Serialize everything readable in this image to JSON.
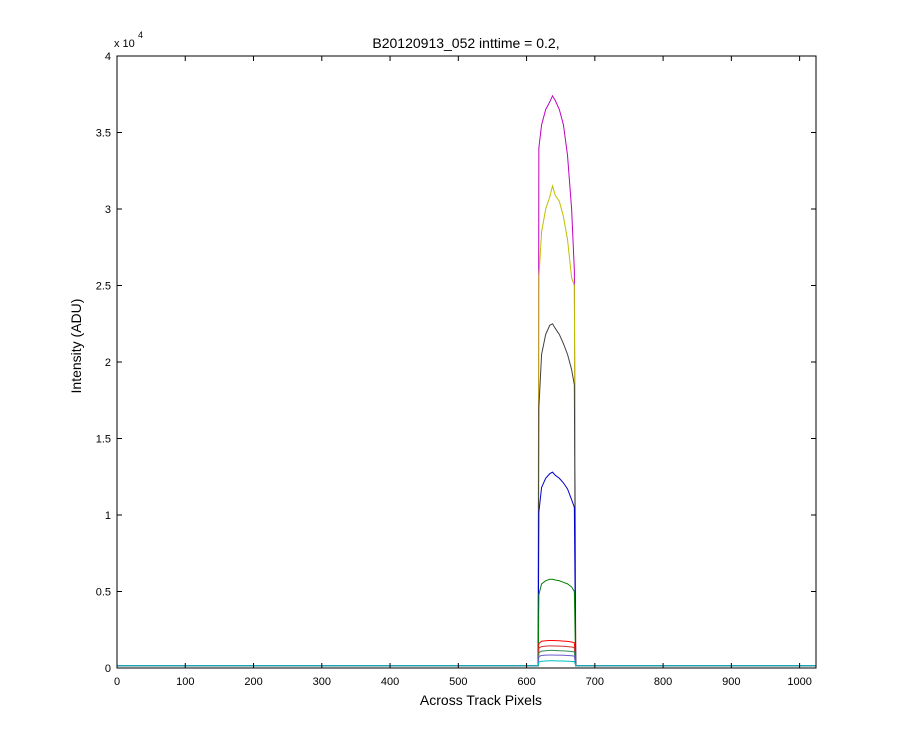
{
  "chart_data": {
    "type": "line",
    "title": "B20120913_052 inttime = 0.2,",
    "xlabel": "Across Track Pixels",
    "ylabel": "Intensity (ADU)",
    "xlim": [
      0,
      1024
    ],
    "ylim": [
      0,
      40000
    ],
    "xticks": [
      0,
      100,
      200,
      300,
      400,
      500,
      600,
      700,
      800,
      900,
      1000
    ],
    "yticks": [
      0,
      5000,
      10000,
      15000,
      20000,
      25000,
      30000,
      35000,
      40000
    ],
    "ytick_labels": [
      "0",
      "0.5",
      "1",
      "1.5",
      "2",
      "2.5",
      "3",
      "3.5",
      "4"
    ],
    "y_multiplier_base": "x 10",
    "y_multiplier_exp": "4",
    "grid": false,
    "legend": "none",
    "background_level": 150,
    "plateau_x": [
      618,
      671
    ],
    "series": [
      {
        "color": "#bf00bf",
        "x": [
          618,
          622,
          628,
          634,
          638,
          642,
          648,
          654,
          660,
          666,
          670
        ],
        "values": [
          34000,
          35500,
          36500,
          37000,
          37400,
          37100,
          36500,
          35500,
          33500,
          30000,
          26000
        ]
      },
      {
        "color": "#bfbf00",
        "x": [
          618,
          622,
          628,
          634,
          638,
          642,
          648,
          654,
          660,
          666,
          670
        ],
        "values": [
          25500,
          28500,
          30000,
          30800,
          31500,
          30900,
          30500,
          29500,
          28000,
          25500,
          25000
        ]
      },
      {
        "color": "#404040",
        "x": [
          618,
          622,
          628,
          634,
          638,
          642,
          648,
          654,
          660,
          666,
          670
        ],
        "values": [
          17000,
          20500,
          21800,
          22400,
          22500,
          22200,
          21800,
          21200,
          20500,
          19500,
          18500
        ]
      },
      {
        "color": "#0000cc",
        "x": [
          618,
          622,
          628,
          634,
          638,
          642,
          648,
          654,
          660,
          666,
          670
        ],
        "values": [
          10200,
          11800,
          12400,
          12700,
          12800,
          12600,
          12400,
          12100,
          11700,
          11000,
          10500
        ]
      },
      {
        "color": "#008000",
        "x": [
          618,
          622,
          628,
          634,
          638,
          642,
          648,
          654,
          660,
          666,
          670
        ],
        "values": [
          4800,
          5500,
          5700,
          5800,
          5800,
          5750,
          5700,
          5600,
          5500,
          5300,
          5000
        ]
      },
      {
        "color": "#ff0000",
        "x": [
          618,
          622,
          628,
          634,
          638,
          642,
          648,
          654,
          660,
          666,
          670
        ],
        "values": [
          1600,
          1750,
          1780,
          1800,
          1800,
          1790,
          1780,
          1760,
          1740,
          1700,
          1650
        ]
      },
      {
        "color": "#cc3333",
        "x": [
          618,
          622,
          628,
          634,
          638,
          642,
          648,
          654,
          660,
          666,
          670
        ],
        "values": [
          1300,
          1400,
          1430,
          1450,
          1450,
          1440,
          1430,
          1420,
          1400,
          1370,
          1330
        ]
      },
      {
        "color": "#2e8b57",
        "x": [
          618,
          622,
          628,
          634,
          638,
          642,
          648,
          654,
          660,
          666,
          670
        ],
        "values": [
          1000,
          1100,
          1130,
          1150,
          1150,
          1140,
          1130,
          1120,
          1100,
          1080,
          1050
        ]
      },
      {
        "color": "#6a5acd",
        "x": [
          618,
          622,
          628,
          634,
          638,
          642,
          648,
          654,
          660,
          666,
          670
        ],
        "values": [
          750,
          820,
          840,
          850,
          850,
          845,
          840,
          830,
          820,
          800,
          780
        ]
      },
      {
        "color": "#00bfbf",
        "x": [
          618,
          622,
          628,
          634,
          638,
          642,
          648,
          654,
          660,
          666,
          670
        ],
        "values": [
          400,
          440,
          460,
          470,
          470,
          465,
          460,
          455,
          445,
          430,
          420
        ]
      }
    ]
  }
}
